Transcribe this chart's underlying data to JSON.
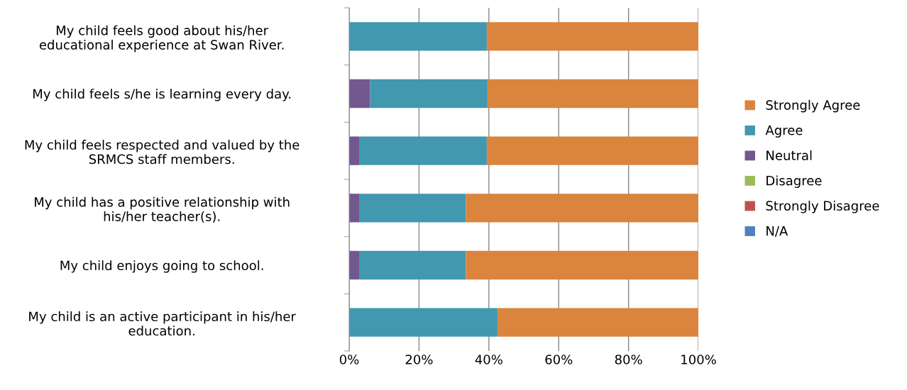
{
  "chart_data": {
    "type": "bar",
    "orientation": "horizontal",
    "stacked": true,
    "categories": [
      "My child feels good about his/her\neducational experience at Swan River.",
      "My child feels s/he is learning every day.",
      "My child feels respected and valued by the\nSRMCS staff members.",
      "My child has a positive relationship with\nhis/her teacher(s).",
      "My child enjoys going to school.",
      "My child is an active participant in his/her\neducation."
    ],
    "series": [
      {
        "name": "N/A",
        "color": "#4f81bd",
        "values": [
          0,
          0,
          0,
          0,
          0,
          0
        ]
      },
      {
        "name": "Strongly Disagree",
        "color": "#c0504d",
        "values": [
          0,
          0,
          0,
          0,
          0,
          0
        ]
      },
      {
        "name": "Disagree",
        "color": "#9bbb59",
        "values": [
          0,
          0,
          0,
          0,
          0,
          0
        ]
      },
      {
        "name": "Neutral",
        "color": "#71588f",
        "values": [
          0,
          6,
          3,
          3,
          3,
          0
        ]
      },
      {
        "name": "Agree",
        "color": "#4198af",
        "values": [
          39.4,
          33.6,
          36.4,
          30.4,
          30.4,
          42.5
        ]
      },
      {
        "name": "Strongly Agree",
        "color": "#db843d",
        "values": [
          60.6,
          60.4,
          60.6,
          66.6,
          66.6,
          57.5
        ]
      }
    ],
    "xlim": [
      0,
      100
    ],
    "xticks": [
      {
        "value": 0,
        "label": "0%"
      },
      {
        "value": 20,
        "label": "20%"
      },
      {
        "value": 40,
        "label": "40%"
      },
      {
        "value": 60,
        "label": "60%"
      },
      {
        "value": 80,
        "label": "80%"
      },
      {
        "value": 100,
        "label": "100%"
      }
    ],
    "grid": "x",
    "legend": "right"
  }
}
